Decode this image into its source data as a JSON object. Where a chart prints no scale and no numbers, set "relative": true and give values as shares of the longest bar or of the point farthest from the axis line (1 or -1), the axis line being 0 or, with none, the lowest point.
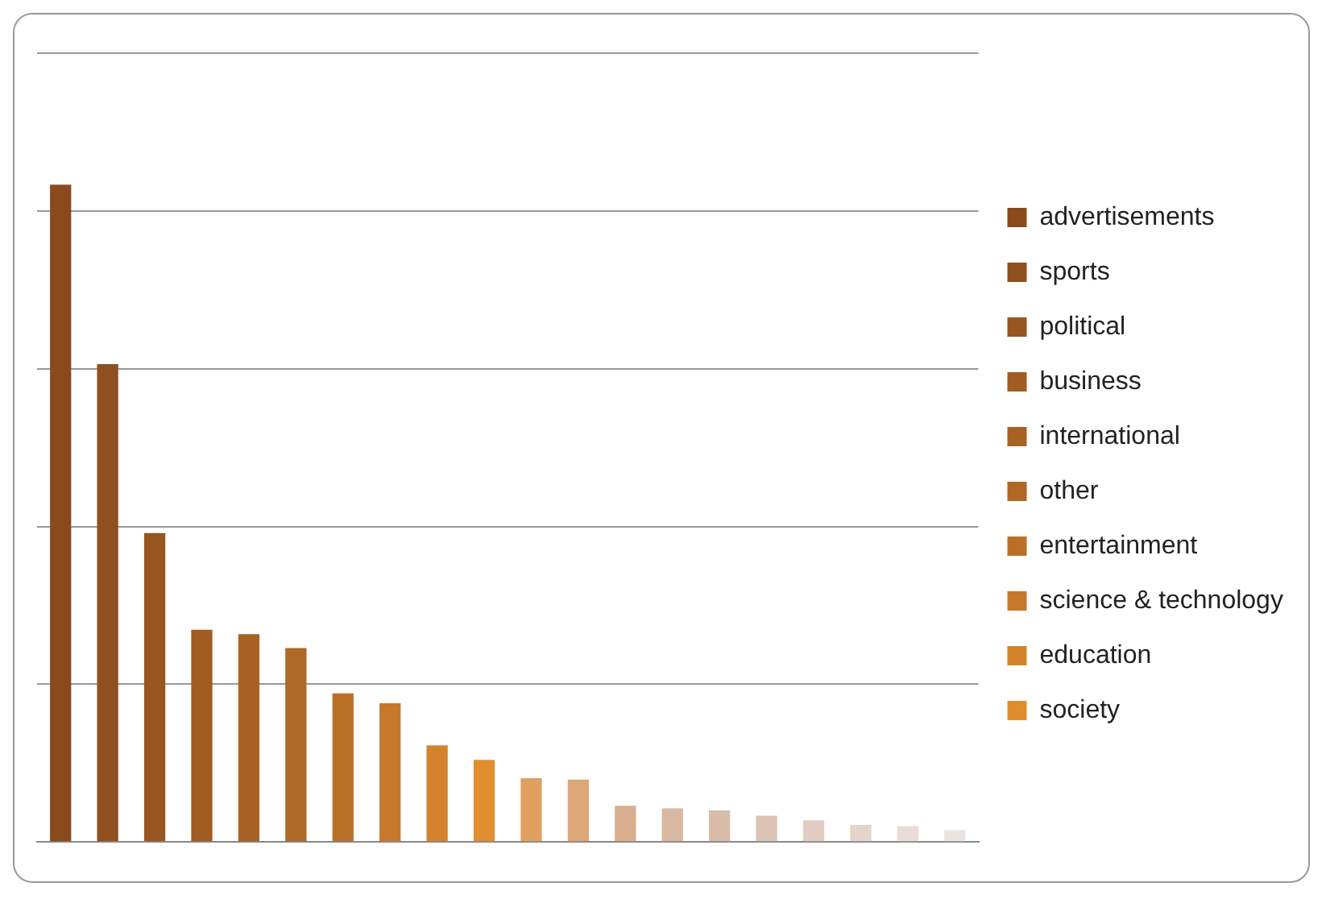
{
  "chart_data": {
    "type": "bar",
    "relative": true,
    "stacked": true,
    "grid": "y",
    "legend": "right",
    "categories": [
      null,
      null,
      null,
      null,
      null,
      null,
      null,
      null,
      null,
      null,
      null,
      null,
      null,
      null,
      null,
      null,
      null,
      null,
      null,
      null
    ],
    "series": [
      {
        "name": "advertisements",
        "color": "#8b4a1c",
        "values": [
          1,
          null,
          null,
          null,
          null,
          null,
          null,
          null,
          null,
          null,
          null,
          null,
          null,
          null,
          null,
          null,
          null,
          null,
          null,
          null
        ]
      },
      {
        "name": "sports",
        "color": "#8f4f1e",
        "values": [
          null,
          0.727,
          null,
          null,
          null,
          null,
          null,
          null,
          null,
          null,
          null,
          null,
          null,
          null,
          null,
          null,
          null,
          null,
          null,
          null
        ]
      },
      {
        "name": "political",
        "color": "#975520",
        "values": [
          null,
          null,
          0.47,
          null,
          null,
          null,
          null,
          null,
          null,
          null,
          null,
          null,
          null,
          null,
          null,
          null,
          null,
          null,
          null,
          null
        ]
      },
      {
        "name": "business",
        "color": "#a05c22",
        "values": [
          null,
          null,
          null,
          0.323,
          null,
          null,
          null,
          null,
          null,
          null,
          null,
          null,
          null,
          null,
          null,
          null,
          null,
          null,
          null,
          null
        ]
      },
      {
        "name": "international",
        "color": "#a86224",
        "values": [
          null,
          null,
          null,
          null,
          0.316,
          null,
          null,
          null,
          null,
          null,
          null,
          null,
          null,
          null,
          null,
          null,
          null,
          null,
          null,
          null
        ]
      },
      {
        "name": "other",
        "color": "#b06826",
        "values": [
          null,
          null,
          null,
          null,
          null,
          0.295,
          null,
          null,
          null,
          null,
          null,
          null,
          null,
          null,
          null,
          null,
          null,
          null,
          null,
          null
        ]
      },
      {
        "name": "entertainment",
        "color": "#bb7028",
        "values": [
          null,
          null,
          null,
          null,
          null,
          null,
          0.226,
          null,
          null,
          null,
          null,
          null,
          null,
          null,
          null,
          null,
          null,
          null,
          null,
          null
        ]
      },
      {
        "name": "science & technology",
        "color": "#c8782a",
        "values": [
          null,
          null,
          null,
          null,
          null,
          null,
          null,
          0.211,
          null,
          null,
          null,
          null,
          null,
          null,
          null,
          null,
          null,
          null,
          null,
          null
        ]
      },
      {
        "name": "education",
        "color": "#d4832c",
        "values": [
          null,
          null,
          null,
          null,
          null,
          null,
          null,
          null,
          0.147,
          null,
          null,
          null,
          null,
          null,
          null,
          null,
          null,
          null,
          null,
          null
        ]
      },
      {
        "name": "society",
        "color": "#e08e2e",
        "values": [
          null,
          null,
          null,
          null,
          null,
          null,
          null,
          null,
          null,
          0.125,
          null,
          null,
          null,
          null,
          null,
          null,
          null,
          null,
          null,
          null
        ]
      },
      {
        "color": "#e0a060",
        "values": [
          null,
          null,
          null,
          null,
          null,
          null,
          null,
          null,
          null,
          null,
          0.097,
          null,
          null,
          null,
          null,
          null,
          null,
          null,
          null,
          null
        ]
      },
      {
        "color": "#dca878",
        "values": [
          null,
          null,
          null,
          null,
          null,
          null,
          null,
          null,
          null,
          null,
          null,
          0.095,
          null,
          null,
          null,
          null,
          null,
          null,
          null,
          null
        ]
      },
      {
        "color": "#d8b090",
        "values": [
          null,
          null,
          null,
          null,
          null,
          null,
          null,
          null,
          null,
          null,
          null,
          null,
          0.055,
          null,
          null,
          null,
          null,
          null,
          null,
          null
        ]
      },
      {
        "color": "#d8b8a0",
        "values": [
          null,
          null,
          null,
          null,
          null,
          null,
          null,
          null,
          null,
          null,
          null,
          null,
          null,
          0.051,
          null,
          null,
          null,
          null,
          null,
          null
        ]
      },
      {
        "color": "#d8bca8",
        "values": [
          null,
          null,
          null,
          null,
          null,
          null,
          null,
          null,
          null,
          null,
          null,
          null,
          null,
          null,
          0.048,
          null,
          null,
          null,
          null,
          null
        ]
      },
      {
        "color": "#dcc4b4",
        "values": [
          null,
          null,
          null,
          null,
          null,
          null,
          null,
          null,
          null,
          null,
          null,
          null,
          null,
          null,
          null,
          0.04,
          null,
          null,
          null,
          null
        ]
      },
      {
        "color": "#e0ccc0",
        "values": [
          null,
          null,
          null,
          null,
          null,
          null,
          null,
          null,
          null,
          null,
          null,
          null,
          null,
          null,
          null,
          null,
          0.033,
          null,
          null,
          null
        ]
      },
      {
        "color": "#e4d4cc",
        "values": [
          null,
          null,
          null,
          null,
          null,
          null,
          null,
          null,
          null,
          null,
          null,
          null,
          null,
          null,
          null,
          null,
          null,
          0.026,
          null,
          null
        ]
      },
      {
        "color": "#e8dcd6",
        "values": [
          null,
          null,
          null,
          null,
          null,
          null,
          null,
          null,
          null,
          null,
          null,
          null,
          null,
          null,
          null,
          null,
          null,
          null,
          0.024,
          null
        ]
      },
      {
        "color": "#ece4e0",
        "values": [
          null,
          null,
          null,
          null,
          null,
          null,
          null,
          null,
          null,
          null,
          null,
          null,
          null,
          null,
          null,
          null,
          null,
          null,
          null,
          0.018
        ]
      }
    ]
  }
}
